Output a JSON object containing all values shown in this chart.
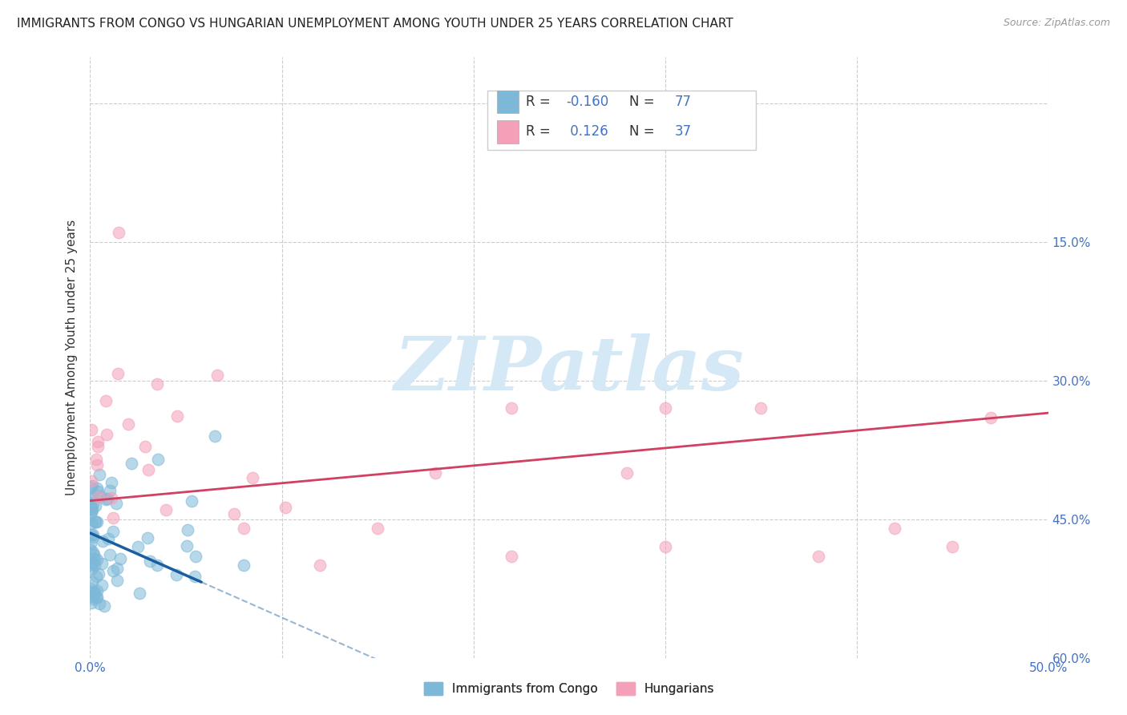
{
  "title": "IMMIGRANTS FROM CONGO VS HUNGARIAN UNEMPLOYMENT AMONG YOUTH UNDER 25 YEARS CORRELATION CHART",
  "source": "Source: ZipAtlas.com",
  "ylabel": "Unemployment Among Youth under 25 years",
  "xlim": [
    0.0,
    0.5
  ],
  "ylim": [
    0.0,
    0.65
  ],
  "xticks": [
    0.0,
    0.1,
    0.2,
    0.3,
    0.4,
    0.5
  ],
  "xtick_labels": [
    "0.0%",
    "",
    "",
    "",
    "",
    "50.0%"
  ],
  "yticks": [
    0.0,
    0.15,
    0.3,
    0.45,
    0.6
  ],
  "left_ytick_labels": [
    "",
    "",
    "",
    "",
    ""
  ],
  "right_ytick_labels": [
    "60.0%",
    "45.0%",
    "30.0%",
    "15.0%",
    ""
  ],
  "background_color": "#ffffff",
  "grid_color": "#cccccc",
  "watermark": "ZIPatlas",
  "blue_color": "#7db8d8",
  "pink_color": "#f4a0b8",
  "blue_line_color": "#1a5ea0",
  "pink_line_color": "#d04060",
  "title_fontsize": 11,
  "axis_label_fontsize": 11,
  "tick_fontsize": 11,
  "watermark_color": "#d5e8f5",
  "watermark_fontsize": 68,
  "tick_color": "#4472c4"
}
